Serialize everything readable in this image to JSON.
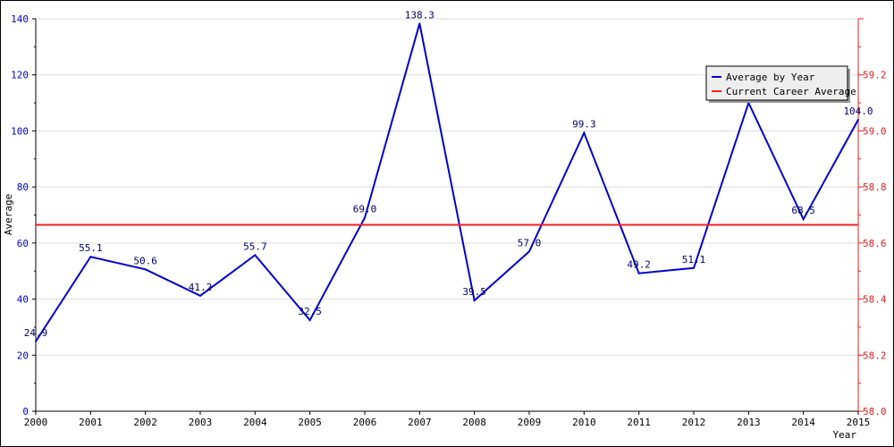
{
  "chart_data": {
    "type": "line",
    "x": [
      2000,
      2001,
      2002,
      2003,
      2004,
      2005,
      2006,
      2007,
      2008,
      2009,
      2010,
      2011,
      2012,
      2013,
      2014,
      2015
    ],
    "x_tick_labels": [
      "2000",
      "2001",
      "2002",
      "2003",
      "2004",
      "2005",
      "2006",
      "2007",
      "2008",
      "2009",
      "2010",
      "2011",
      "2012",
      "2013",
      "2014",
      "2015"
    ],
    "series": [
      {
        "name": "Average by Year",
        "color": "#0000cc",
        "values": [
          24.9,
          55.1,
          50.6,
          41.2,
          55.7,
          32.5,
          69.0,
          138.3,
          39.5,
          57.0,
          99.3,
          49.2,
          51.1,
          110.0,
          68.5,
          104.0
        ],
        "labels": [
          "24.9",
          "55.1",
          "50.6",
          "41.2",
          "55.7",
          "32.5",
          "69.0",
          "138.3",
          "39.5",
          "57.0",
          "99.3",
          "49.2",
          "51.1",
          "",
          "68.5",
          "104.0"
        ]
      },
      {
        "name": "Current Career Average",
        "color": "#ee2222",
        "value": 66.5
      }
    ],
    "xlabel": "Year",
    "ylabel": "Average",
    "xlim": [
      2000,
      2015
    ],
    "ylim": [
      0,
      140
    ],
    "y_ticks": [
      0,
      20,
      40,
      60,
      80,
      100,
      120,
      140
    ],
    "y_tick_labels": [
      "0",
      "20",
      "40",
      "60",
      "80",
      "100",
      "120",
      "140"
    ],
    "y2lim": [
      58.0,
      59.4
    ],
    "y2_ticks": [
      58.0,
      58.2,
      58.4,
      58.6,
      58.8,
      59.0,
      59.2
    ],
    "y2_tick_labels": [
      "58.0",
      "58.2",
      "58.4",
      "58.6",
      "58.8",
      "59.0",
      "59.2"
    ],
    "grid": "horizontal",
    "legend_position": "top-right",
    "colors": {
      "left_axis": "#0000cc",
      "right_axis": "#dd2222",
      "grid": "#dddddd"
    }
  }
}
